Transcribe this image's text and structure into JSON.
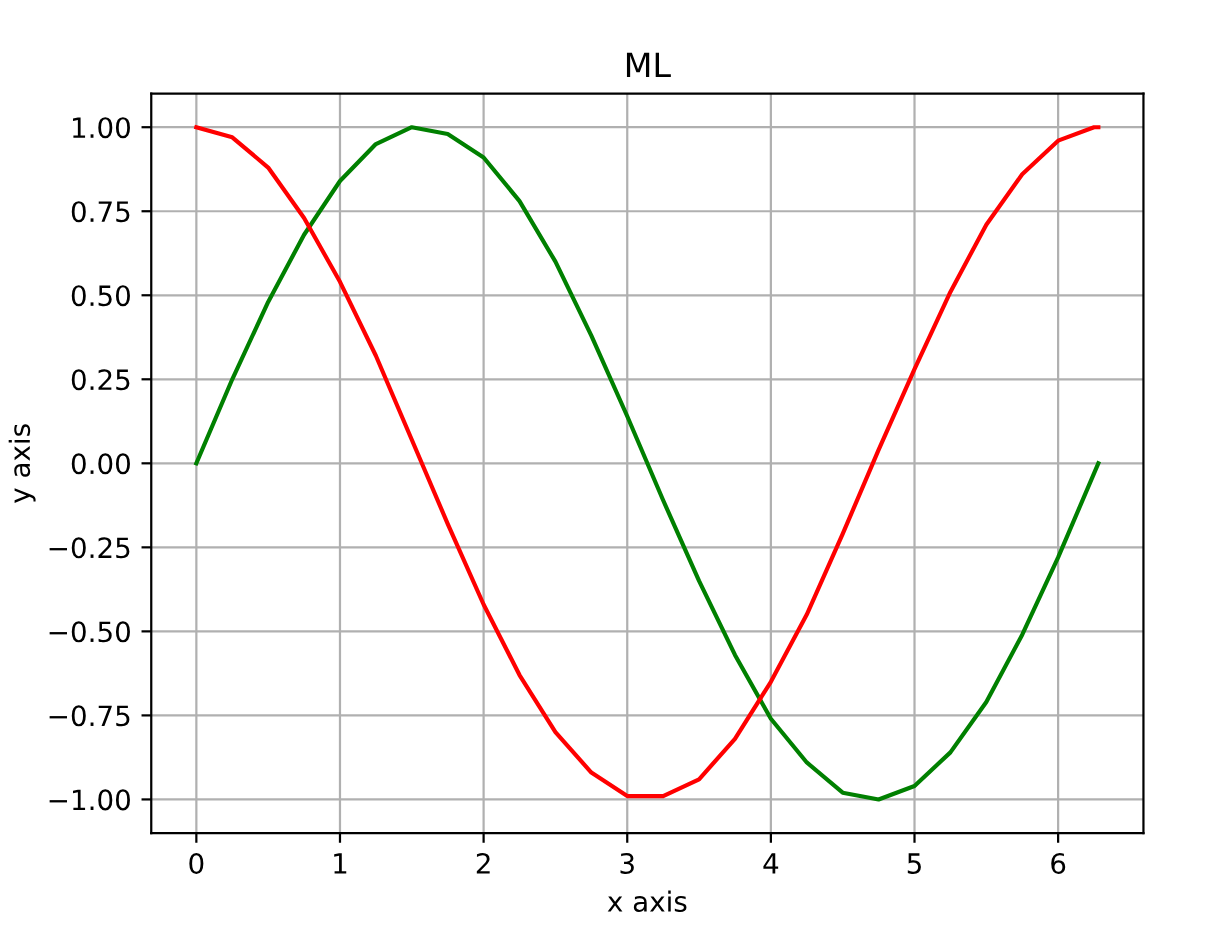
{
  "chart_data": {
    "type": "line",
    "title": "ML",
    "xlabel": "x axis",
    "ylabel": "y axis",
    "x": [
      0,
      0.25,
      0.5,
      0.75,
      1,
      1.25,
      1.5,
      1.75,
      2,
      2.25,
      2.5,
      2.75,
      3,
      3.25,
      3.5,
      3.75,
      4,
      4.25,
      4.5,
      4.75,
      5,
      5.25,
      5.5,
      5.75,
      6,
      6.25,
      6.28
    ],
    "series": [
      {
        "color": "#008000",
        "values": [
          0,
          0.25,
          0.48,
          0.68,
          0.84,
          0.95,
          1.0,
          0.98,
          0.91,
          0.78,
          0.6,
          0.38,
          0.14,
          -0.11,
          -0.35,
          -0.57,
          -0.76,
          -0.89,
          -0.98,
          -1.0,
          -0.96,
          -0.86,
          -0.71,
          -0.51,
          -0.28,
          -0.03,
          0
        ]
      },
      {
        "color": "#ff0000",
        "values": [
          1,
          0.97,
          0.88,
          0.73,
          0.54,
          0.32,
          0.07,
          -0.18,
          -0.42,
          -0.63,
          -0.8,
          -0.92,
          -0.99,
          -0.99,
          -0.94,
          -0.82,
          -0.65,
          -0.45,
          -0.21,
          0.04,
          0.28,
          0.51,
          0.71,
          0.86,
          0.96,
          1.0,
          1.0
        ]
      }
    ],
    "xlim": [
      -0.314,
      6.594
    ],
    "ylim": [
      -1.1,
      1.1
    ],
    "xticks": [
      0,
      1,
      2,
      3,
      4,
      5,
      6
    ],
    "yticks": [
      {
        "value": -1,
        "label": "−1.00"
      },
      {
        "value": -0.75,
        "label": "−0.75"
      },
      {
        "value": -0.5,
        "label": "−0.50"
      },
      {
        "value": -0.25,
        "label": "−0.25"
      },
      {
        "value": 0,
        "label": "0.00"
      },
      {
        "value": 0.25,
        "label": "0.25"
      },
      {
        "value": 0.5,
        "label": "0.50"
      },
      {
        "value": 0.75,
        "label": "0.75"
      },
      {
        "value": 1,
        "label": "1.00"
      }
    ],
    "grid": true,
    "marker": "none",
    "line_style": "solid"
  }
}
